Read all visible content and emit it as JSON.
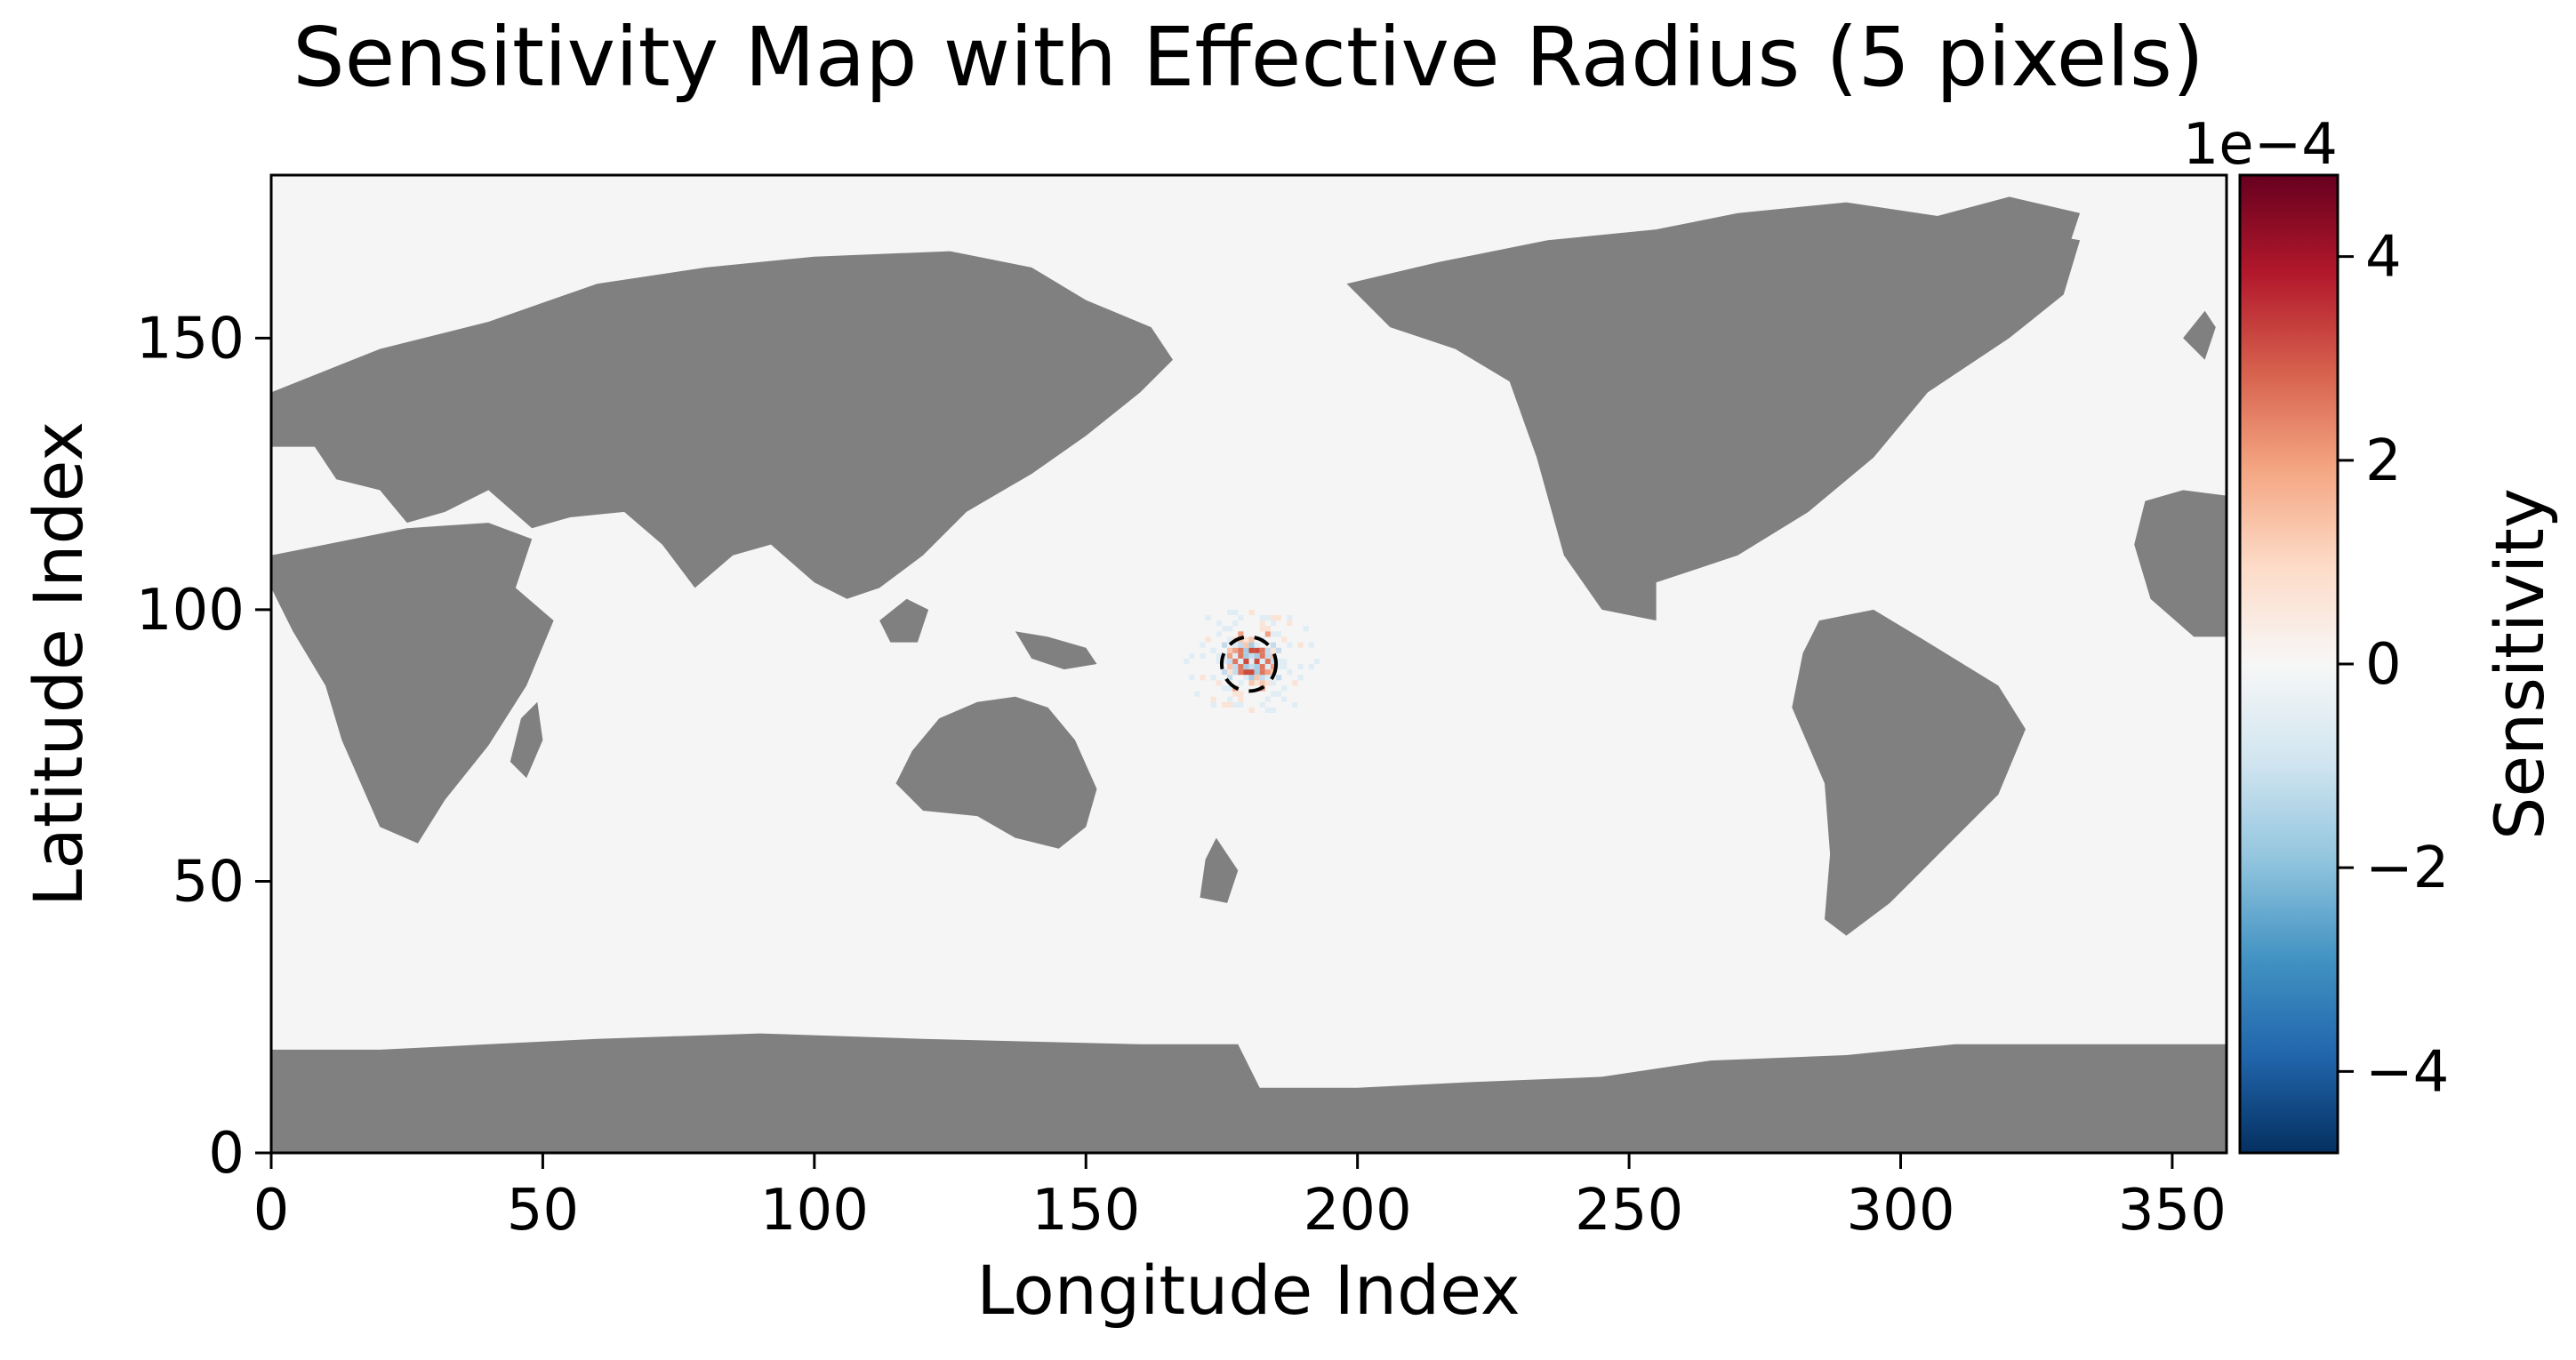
{
  "chart_data": {
    "type": "heatmap",
    "title": "Sensitivity Map with Effective Radius (5 pixels)",
    "xlabel": "Longitude Index",
    "ylabel": "Latitude Index",
    "xlim": [
      0,
      360
    ],
    "ylim": [
      0,
      180
    ],
    "xticks": [
      0,
      50,
      100,
      150,
      200,
      250,
      300,
      350
    ],
    "yticks": [
      0,
      50,
      100,
      150
    ],
    "colorbar": {
      "label": "Sensitivity",
      "scale_label": "1e−4",
      "range": [
        -0.00048,
        0.00048
      ],
      "ticks": [
        4,
        2,
        0,
        -2,
        -4
      ],
      "tick_labels": [
        "4",
        "2",
        "0",
        "−2",
        "−4"
      ],
      "colormap": "RdBu_r"
    },
    "land_mask_color": "#808080",
    "ocean_background_color": "#f5f5f5",
    "sensitivity_center": {
      "x": 180,
      "y": 90
    },
    "effective_radius": 5,
    "grid": false,
    "continents": [
      {
        "name": "Eurasia",
        "points": [
          [
            0,
            140
          ],
          [
            20,
            148
          ],
          [
            40,
            153
          ],
          [
            60,
            160
          ],
          [
            80,
            163
          ],
          [
            100,
            165
          ],
          [
            125,
            166
          ],
          [
            140,
            163
          ],
          [
            150,
            157
          ],
          [
            162,
            152
          ],
          [
            166,
            146
          ],
          [
            160,
            140
          ],
          [
            150,
            132
          ],
          [
            140,
            125
          ],
          [
            128,
            118
          ],
          [
            120,
            110
          ],
          [
            112,
            104
          ],
          [
            106,
            102
          ],
          [
            100,
            105
          ],
          [
            92,
            112
          ],
          [
            85,
            110
          ],
          [
            78,
            104
          ],
          [
            72,
            112
          ],
          [
            65,
            118
          ],
          [
            55,
            117
          ],
          [
            48,
            115
          ],
          [
            40,
            122
          ],
          [
            32,
            118
          ],
          [
            25,
            116
          ],
          [
            20,
            122
          ],
          [
            12,
            124
          ],
          [
            8,
            130
          ],
          [
            0,
            130
          ]
        ]
      },
      {
        "name": "Africa",
        "points": [
          [
            10,
            112
          ],
          [
            25,
            115
          ],
          [
            40,
            116
          ],
          [
            48,
            113
          ],
          [
            45,
            104
          ],
          [
            52,
            98
          ],
          [
            47,
            86
          ],
          [
            40,
            75
          ],
          [
            32,
            65
          ],
          [
            27,
            57
          ],
          [
            20,
            60
          ],
          [
            13,
            76
          ],
          [
            10,
            86
          ],
          [
            4,
            96
          ],
          [
            0,
            104
          ],
          [
            0,
            110
          ]
        ]
      },
      {
        "name": "Australia",
        "points": [
          [
            115,
            68
          ],
          [
            118,
            74
          ],
          [
            123,
            80
          ],
          [
            130,
            83
          ],
          [
            137,
            84
          ],
          [
            143,
            82
          ],
          [
            148,
            76
          ],
          [
            152,
            67
          ],
          [
            150,
            60
          ],
          [
            145,
            56
          ],
          [
            137,
            58
          ],
          [
            130,
            62
          ],
          [
            120,
            63
          ]
        ]
      },
      {
        "name": "North America",
        "points": [
          [
            198,
            160
          ],
          [
            215,
            164
          ],
          [
            235,
            168
          ],
          [
            255,
            170
          ],
          [
            270,
            173
          ],
          [
            290,
            175
          ],
          [
            310,
            172
          ],
          [
            333,
            168
          ],
          [
            330,
            158
          ],
          [
            320,
            150
          ],
          [
            305,
            140
          ],
          [
            295,
            128
          ],
          [
            283,
            118
          ],
          [
            270,
            110
          ],
          [
            255,
            105
          ],
          [
            255,
            98
          ],
          [
            245,
            100
          ],
          [
            238,
            110
          ],
          [
            233,
            128
          ],
          [
            228,
            142
          ],
          [
            218,
            148
          ],
          [
            206,
            152
          ]
        ]
      },
      {
        "name": "South America",
        "points": [
          [
            285,
            98
          ],
          [
            295,
            100
          ],
          [
            305,
            94
          ],
          [
            318,
            86
          ],
          [
            323,
            78
          ],
          [
            318,
            66
          ],
          [
            308,
            56
          ],
          [
            298,
            46
          ],
          [
            290,
            40
          ],
          [
            286,
            43
          ],
          [
            287,
            55
          ],
          [
            286,
            68
          ],
          [
            280,
            82
          ],
          [
            282,
            92
          ]
        ]
      },
      {
        "name": "Greenland",
        "points": [
          [
            292,
            160
          ],
          [
            305,
            172
          ],
          [
            320,
            176
          ],
          [
            333,
            173
          ],
          [
            330,
            164
          ],
          [
            318,
            158
          ],
          [
            305,
            156
          ]
        ]
      },
      {
        "name": "West Africa Edge",
        "points": [
          [
            345,
            120
          ],
          [
            352,
            122
          ],
          [
            360,
            121
          ],
          [
            360,
            95
          ],
          [
            354,
            95
          ],
          [
            346,
            102
          ],
          [
            343,
            112
          ]
        ]
      },
      {
        "name": "Antarctica",
        "points": [
          [
            0,
            0
          ],
          [
            0,
            19
          ],
          [
            20,
            19
          ],
          [
            40,
            20
          ],
          [
            60,
            21
          ],
          [
            90,
            22
          ],
          [
            120,
            21
          ],
          [
            160,
            20
          ],
          [
            178,
            20
          ],
          [
            182,
            12
          ],
          [
            200,
            12
          ],
          [
            220,
            13
          ],
          [
            245,
            14
          ],
          [
            265,
            17
          ],
          [
            290,
            18
          ],
          [
            310,
            20
          ],
          [
            335,
            20
          ],
          [
            360,
            20
          ],
          [
            360,
            0
          ]
        ]
      },
      {
        "name": "Papua New Guinea",
        "points": [
          [
            137,
            96
          ],
          [
            143,
            95
          ],
          [
            150,
            93
          ],
          [
            152,
            90
          ],
          [
            146,
            89
          ],
          [
            140,
            91
          ]
        ]
      },
      {
        "name": "New Zealand",
        "points": [
          [
            174,
            58
          ],
          [
            178,
            52
          ],
          [
            176,
            46
          ],
          [
            171,
            47
          ],
          [
            172,
            54
          ]
        ]
      },
      {
        "name": "Japan",
        "points": [
          [
            132,
            132
          ],
          [
            136,
            137
          ],
          [
            140,
            142
          ],
          [
            142,
            145
          ],
          [
            139,
            144
          ],
          [
            135,
            139
          ],
          [
            131,
            134
          ]
        ]
      },
      {
        "name": "Borneo",
        "points": [
          [
            112,
            98
          ],
          [
            117,
            102
          ],
          [
            121,
            100
          ],
          [
            119,
            94
          ],
          [
            114,
            94
          ]
        ]
      },
      {
        "name": "Madagascar",
        "points": [
          [
            46,
            80
          ],
          [
            49,
            83
          ],
          [
            50,
            76
          ],
          [
            47,
            69
          ],
          [
            44,
            72
          ]
        ]
      },
      {
        "name": "British Isles",
        "points": [
          [
            352,
            150
          ],
          [
            356,
            155
          ],
          [
            358,
            152
          ],
          [
            356,
            146
          ]
        ]
      }
    ]
  }
}
